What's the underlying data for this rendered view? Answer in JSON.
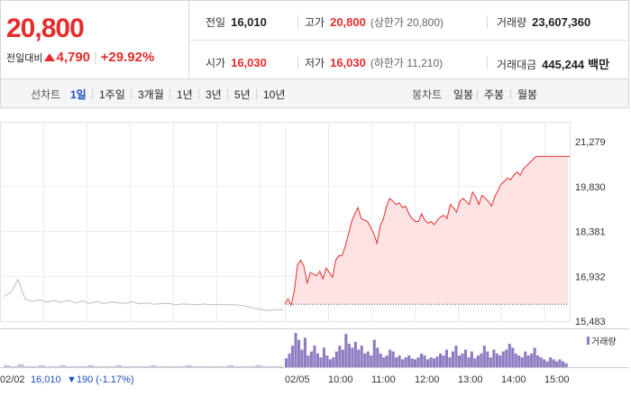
{
  "header": {
    "price": "20,800",
    "change_label": "전일대비",
    "change_value": "4,790",
    "change_percent": "+29.92%"
  },
  "stats": {
    "prev_close_label": "전일",
    "prev_close": "16,010",
    "high_label": "고가",
    "high": "20,800",
    "upper_limit": "(상한가 20,800)",
    "volume_label": "거래량",
    "volume": "23,607,360",
    "open_label": "시가",
    "open": "16,030",
    "low_label": "저가",
    "low": "16,030",
    "lower_limit": "(하한가 11,210)",
    "value_label": "거래대금",
    "value": "445,244",
    "value_unit": "백만"
  },
  "tabs": {
    "line_label": "선차트",
    "line_periods": [
      "1일",
      "1주일",
      "3개월",
      "1년",
      "3년",
      "5년",
      "10년"
    ],
    "active_period": "1일",
    "candle_label": "봉차트",
    "candle_periods": [
      "일봉",
      "주봉",
      "월봉"
    ]
  },
  "colors": {
    "up": "#e52d2d",
    "prev_line": "#bdbdbd",
    "fill": "#fde3e3",
    "volume": "#8e7cc3",
    "active_tab": "#1a4fc4",
    "down_blue": "#1a4fc4"
  },
  "chart_data": {
    "type": "line",
    "y_ticks": [
      "21,279",
      "19,830",
      "18,381",
      "16,932",
      "15,483"
    ],
    "y_tick_values": [
      21279,
      19830,
      18381,
      16932,
      15483
    ],
    "ylim": [
      15483,
      21279
    ],
    "prev_day": {
      "date": "02/02",
      "close": "16,010",
      "change": "▼190 (-1.17%)",
      "values": [
        16280,
        16400,
        16830,
        16210,
        16120,
        16180,
        16100,
        16150,
        16090,
        16160,
        16070,
        16140,
        16060,
        16120,
        16050,
        16100,
        16080,
        16060,
        16110,
        16040,
        16070,
        16030,
        16050,
        16060,
        16010,
        16040,
        16030,
        16020,
        16040,
        16010,
        16030,
        16020,
        16010,
        16000,
        15960,
        15900,
        15860,
        15830,
        15850,
        15860
      ]
    },
    "today": {
      "date": "02/05",
      "x_ticks": [
        "10:00",
        "11:00",
        "12:00",
        "13:00",
        "14:00",
        "15:00"
      ],
      "values": [
        16050,
        16200,
        16000,
        16480,
        17300,
        17450,
        17250,
        16700,
        17050,
        17000,
        16950,
        17100,
        16850,
        17200,
        17050,
        16900,
        17450,
        17600,
        17600,
        17900,
        18300,
        18700,
        18950,
        19150,
        18800,
        18750,
        18700,
        18500,
        18300,
        18000,
        18550,
        18800,
        19200,
        19450,
        19350,
        19250,
        19300,
        19150,
        19200,
        18950,
        18800,
        18700,
        18700,
        18950,
        18750,
        18650,
        18700,
        18600,
        18750,
        18850,
        18900,
        18800,
        19250,
        19150,
        19000,
        19350,
        19450,
        19350,
        19250,
        19650,
        19500,
        19250,
        19550,
        19450,
        19350,
        19200,
        19500,
        19700,
        19900,
        20000,
        20100,
        20050,
        20200,
        20300,
        20200,
        20400,
        20500,
        20600,
        20700,
        20800,
        20800,
        20800,
        20800,
        20800,
        20800,
        20800,
        20800,
        20800,
        20800,
        20800
      ],
      "open_ref": 16030,
      "limit_up": 20800
    },
    "volume_legend": "거래량",
    "volume_prev": [
      2,
      1,
      3,
      1,
      1,
      2,
      1,
      1,
      2,
      1,
      1,
      1,
      2,
      1,
      1,
      1,
      2,
      1,
      1,
      1,
      1,
      2,
      1,
      1,
      1,
      1,
      2,
      1,
      1,
      1,
      1,
      1,
      2,
      1,
      1,
      1,
      2,
      1,
      1,
      1
    ],
    "volume_today": [
      9,
      14,
      22,
      35,
      28,
      18,
      30,
      12,
      16,
      22,
      14,
      10,
      20,
      12,
      8,
      10,
      16,
      22,
      18,
      34,
      24,
      20,
      26,
      18,
      22,
      14,
      16,
      12,
      28,
      20,
      14,
      10,
      12,
      18,
      16,
      10,
      12,
      8,
      10,
      12,
      9,
      8,
      10,
      14,
      12,
      8,
      10,
      9,
      11,
      14,
      12,
      18,
      10,
      16,
      22,
      12,
      14,
      18,
      10,
      16,
      9,
      12,
      14,
      22,
      16,
      10,
      18,
      14,
      12,
      16,
      18,
      24,
      20,
      14,
      12,
      10,
      16,
      12,
      14,
      20,
      12,
      10,
      8,
      6,
      10,
      8,
      6,
      8,
      6,
      4
    ]
  }
}
